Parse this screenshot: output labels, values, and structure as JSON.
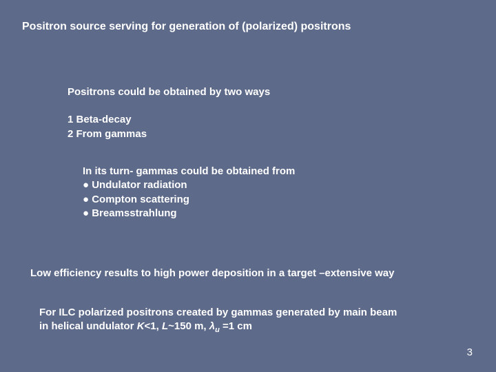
{
  "background_color": "#5d6a8a",
  "text_color": "#ffffff",
  "title": "Positron source serving for generation of (polarized) positrons",
  "intro": "Positrons could be obtained by two ways",
  "method1": "1 Beta-decay",
  "method2": "2 From gammas",
  "gamma_intro": "In its turn- gammas could be obtained from",
  "gamma_b1": "● Undulator radiation",
  "gamma_b2": "● Compton scattering",
  "gamma_b3": "● Breamsstrahlung",
  "efficiency": "Low efficiency results to high power deposition in a target –extensive way",
  "ilc_line1_pre": "For ILC polarized positrons created by gammas generated by main beam",
  "ilc_line2_a": "in helical undulator ",
  "ilc_K": "K",
  "ilc_lt1": "<1, ",
  "ilc_L": "L",
  "ilc_len": "~150 m, ",
  "ilc_lambda": "λ",
  "ilc_sub": "u",
  "ilc_eq": " =1 cm",
  "page": "3"
}
